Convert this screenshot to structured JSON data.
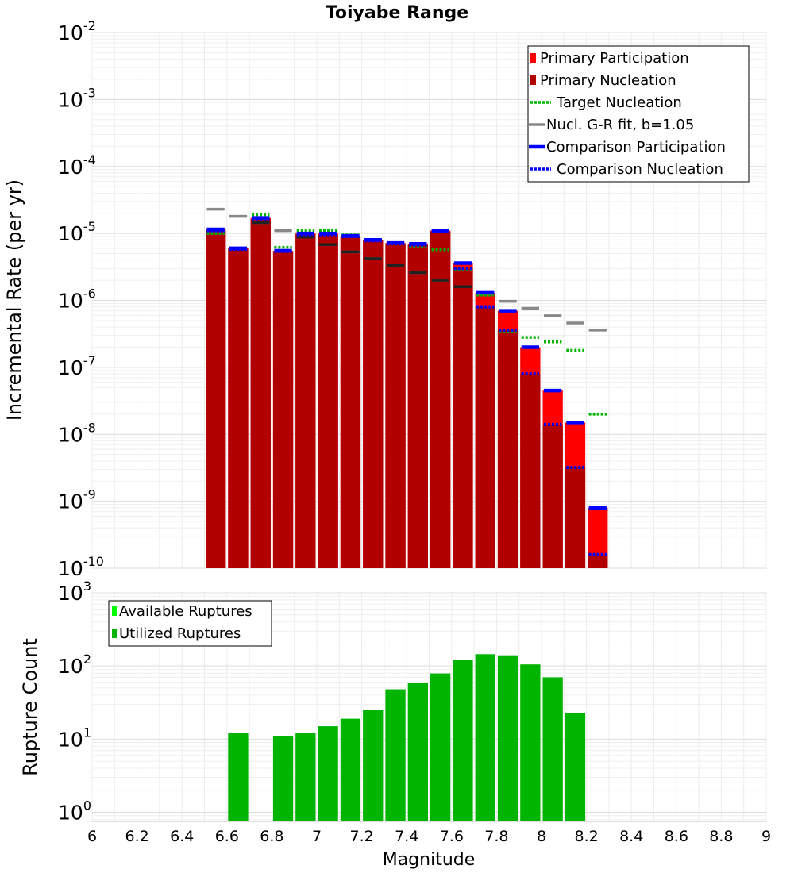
{
  "chart_data": [
    {
      "type": "bar",
      "title": "Toiyabe Range",
      "xlabel": "",
      "ylabel": "Incremental Rate (per yr)",
      "yscale": "log",
      "ylim": [
        1e-10,
        0.01
      ],
      "xlim": [
        6,
        9
      ],
      "bin_width": 0.1,
      "ytick_exponents": [
        "-10",
        "-9",
        "-8",
        "-7",
        "-6",
        "-5",
        "-4",
        "-3",
        "-2"
      ],
      "legend_placement": "top-right",
      "grid": true,
      "x": [
        6.55,
        6.65,
        6.75,
        6.85,
        6.95,
        7.05,
        7.15,
        7.25,
        7.35,
        7.45,
        7.55,
        7.65,
        7.75,
        7.85,
        7.95,
        8.05,
        8.15,
        8.25
      ],
      "series": [
        {
          "name": "Primary Participation",
          "color": "#ff0000",
          "style": "bar",
          "values": [
            1.15e-05,
            6e-06,
            1.7e-05,
            5.5e-06,
            1e-05,
            1e-05,
            9.2e-06,
            8e-06,
            7.2e-06,
            7e-06,
            1.1e-05,
            3.6e-06,
            1.3e-06,
            7e-07,
            2e-07,
            4.5e-08,
            1.5e-08,
            8e-10
          ]
        },
        {
          "name": "Primary Nucleation",
          "color": "#b20000",
          "style": "bar",
          "values": [
            1.1e-05,
            5.8e-06,
            1.65e-05,
            5.4e-06,
            9.6e-06,
            9.6e-06,
            9e-06,
            7.8e-06,
            7e-06,
            6.7e-06,
            1.06e-05,
            3e-06,
            8e-07,
            3.6e-07,
            8e-08,
            1.4e-08,
            3.2e-09,
            1.6e-10
          ]
        },
        {
          "name": "Target Nucleation",
          "color": "#00b400",
          "style": "dotted",
          "values": [
            1e-05,
            5.8e-06,
            1.9e-05,
            6.2e-06,
            1.1e-05,
            1.1e-05,
            9.5e-06,
            8e-06,
            7e-06,
            6.3e-06,
            5.7e-06,
            2.9e-06,
            1.2e-06,
            3.4e-07,
            2.8e-07,
            2.4e-07,
            1.8e-07,
            2e-08
          ]
        },
        {
          "name": "Nucl. G-R fit, b=1.05",
          "color": "#888888",
          "style": "solid",
          "values": [
            2.3e-05,
            1.8e-05,
            1.45e-05,
            1.1e-05,
            8.8e-06,
            6.8e-06,
            5.3e-06,
            4.2e-06,
            3.3e-06,
            2.6e-06,
            2e-06,
            1.6e-06,
            1.25e-06,
            9.7e-07,
            7.6e-07,
            5.9e-07,
            4.6e-07,
            3.6e-07
          ]
        },
        {
          "name": "",
          "color": "#222222",
          "style": "solid",
          "values": [
            null,
            null,
            1.45e-05,
            null,
            8.8e-06,
            6.8e-06,
            5.3e-06,
            4.2e-06,
            3.3e-06,
            2.6e-06,
            2e-06,
            1.6e-06,
            null,
            null,
            null,
            null,
            null,
            null
          ]
        },
        {
          "name": "Comparison Participation",
          "color": "#0000ff",
          "style": "solid",
          "values": [
            1.15e-05,
            6e-06,
            1.7e-05,
            5.5e-06,
            1e-05,
            1e-05,
            9.2e-06,
            8e-06,
            7.2e-06,
            7e-06,
            1.1e-05,
            3.6e-06,
            1.3e-06,
            7e-07,
            2e-07,
            4.5e-08,
            1.5e-08,
            8e-10
          ]
        },
        {
          "name": "Comparison Nucleation",
          "color": "#0000ff",
          "style": "dotted",
          "values": [
            1.1e-05,
            5.8e-06,
            1.65e-05,
            5.4e-06,
            9.6e-06,
            9.6e-06,
            9e-06,
            7.8e-06,
            7e-06,
            6.7e-06,
            1.06e-05,
            3e-06,
            8e-07,
            3.6e-07,
            8e-08,
            1.4e-08,
            3.2e-09,
            1.6e-10
          ]
        }
      ]
    },
    {
      "type": "bar",
      "title": "",
      "xlabel": "Magnitude",
      "ylabel": "Rupture Count",
      "yscale": "log",
      "ylim": [
        0.75,
        1000
      ],
      "xlim": [
        6,
        9
      ],
      "bin_width": 0.1,
      "ytick_exponents": [
        "0",
        "1",
        "2",
        "3"
      ],
      "xticks": [
        "6",
        "6.2",
        "6.4",
        "6.6",
        "6.8",
        "7",
        "7.2",
        "7.4",
        "7.6",
        "7.8",
        "8",
        "8.2",
        "8.4",
        "8.6",
        "8.8",
        "9"
      ],
      "legend_placement": "top-left",
      "grid": true,
      "x": [
        6.65,
        6.85,
        6.95,
        7.05,
        7.15,
        7.25,
        7.35,
        7.45,
        7.55,
        7.65,
        7.75,
        7.85,
        7.95,
        8.05,
        8.15
      ],
      "series": [
        {
          "name": "Available Ruptures",
          "color": "#00ff00",
          "style": "bar",
          "values": [
            12,
            11,
            12,
            15,
            19,
            25,
            48,
            58,
            79,
            120,
            145,
            140,
            105,
            70,
            23
          ]
        },
        {
          "name": "Utilized Ruptures",
          "color": "#00b400",
          "style": "bar",
          "values": [
            12,
            11,
            12,
            15,
            19,
            25,
            48,
            58,
            79,
            120,
            145,
            140,
            105,
            70,
            23
          ]
        }
      ]
    }
  ]
}
